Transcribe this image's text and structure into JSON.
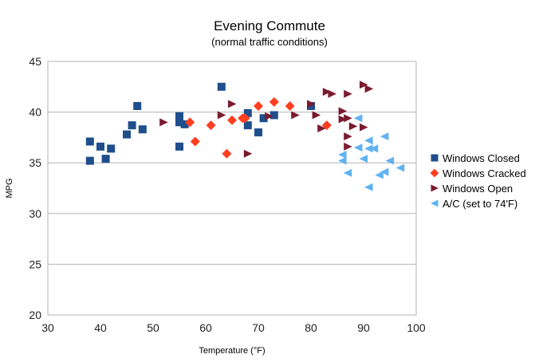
{
  "chart_data": {
    "type": "scatter",
    "title": "Evening Commute",
    "subtitle": "(normal traffic conditions)",
    "xlabel": "Temperature (°F)",
    "ylabel": "MPG",
    "xlim": [
      30,
      100
    ],
    "ylim": [
      20,
      45
    ],
    "xticks": [
      "30",
      "40",
      "50",
      "60",
      "70",
      "80",
      "90",
      "100"
    ],
    "yticks": [
      "20",
      "25",
      "30",
      "35",
      "40",
      "45"
    ],
    "grid": "horizontal",
    "legend_position": "right",
    "series": [
      {
        "name": "Windows Closed",
        "marker": "square",
        "color": "#1f4e8c",
        "points": [
          [
            38,
            37.1
          ],
          [
            38,
            35.2
          ],
          [
            40,
            36.6
          ],
          [
            41,
            35.4
          ],
          [
            42,
            36.4
          ],
          [
            45,
            37.8
          ],
          [
            46,
            38.7
          ],
          [
            47,
            40.6
          ],
          [
            48,
            38.3
          ],
          [
            55,
            39.6
          ],
          [
            55,
            39.0
          ],
          [
            55,
            36.6
          ],
          [
            56,
            38.8
          ],
          [
            63,
            42.5
          ],
          [
            68,
            39.9
          ],
          [
            68,
            38.7
          ],
          [
            70,
            38.0
          ],
          [
            71,
            39.4
          ],
          [
            73,
            39.7
          ],
          [
            80,
            40.6
          ]
        ]
      },
      {
        "name": "Windows Cracked",
        "marker": "diamond",
        "color": "#ff3d1f",
        "points": [
          [
            57,
            39.0
          ],
          [
            58,
            37.1
          ],
          [
            61,
            38.7
          ],
          [
            64,
            35.9
          ],
          [
            65,
            39.2
          ],
          [
            67,
            39.4
          ],
          [
            67.5,
            39.4
          ],
          [
            70,
            40.6
          ],
          [
            73,
            41.0
          ],
          [
            76,
            40.6
          ],
          [
            83,
            38.7
          ]
        ]
      },
      {
        "name": "Windows Open",
        "marker": "triangle-right",
        "color": "#7b1a2e",
        "points": [
          [
            52,
            39.0
          ],
          [
            63,
            39.7
          ],
          [
            65,
            40.8
          ],
          [
            68,
            35.9
          ],
          [
            72,
            39.6
          ],
          [
            77,
            39.7
          ],
          [
            80,
            40.8
          ],
          [
            81,
            39.7
          ],
          [
            82,
            38.4
          ],
          [
            83,
            42.0
          ],
          [
            84,
            41.8
          ],
          [
            86,
            40.1
          ],
          [
            86,
            39.3
          ],
          [
            87,
            41.8
          ],
          [
            87,
            39.4
          ],
          [
            87,
            37.6
          ],
          [
            87,
            36.6
          ],
          [
            88,
            38.6
          ],
          [
            90,
            42.7
          ],
          [
            90,
            38.5
          ],
          [
            91,
            42.3
          ]
        ]
      },
      {
        "name": "A/C (set to 74'F)",
        "marker": "triangle-left",
        "color": "#5fb3f0",
        "points": [
          [
            86,
            35.8
          ],
          [
            86,
            35.2
          ],
          [
            87,
            34.0
          ],
          [
            89,
            39.4
          ],
          [
            89,
            36.5
          ],
          [
            90,
            35.4
          ],
          [
            91,
            37.2
          ],
          [
            91,
            36.4
          ],
          [
            91,
            32.6
          ],
          [
            92,
            36.4
          ],
          [
            93,
            33.8
          ],
          [
            94,
            37.6
          ],
          [
            94,
            34.1
          ],
          [
            95,
            35.2
          ],
          [
            97,
            34.5
          ]
        ]
      }
    ]
  }
}
